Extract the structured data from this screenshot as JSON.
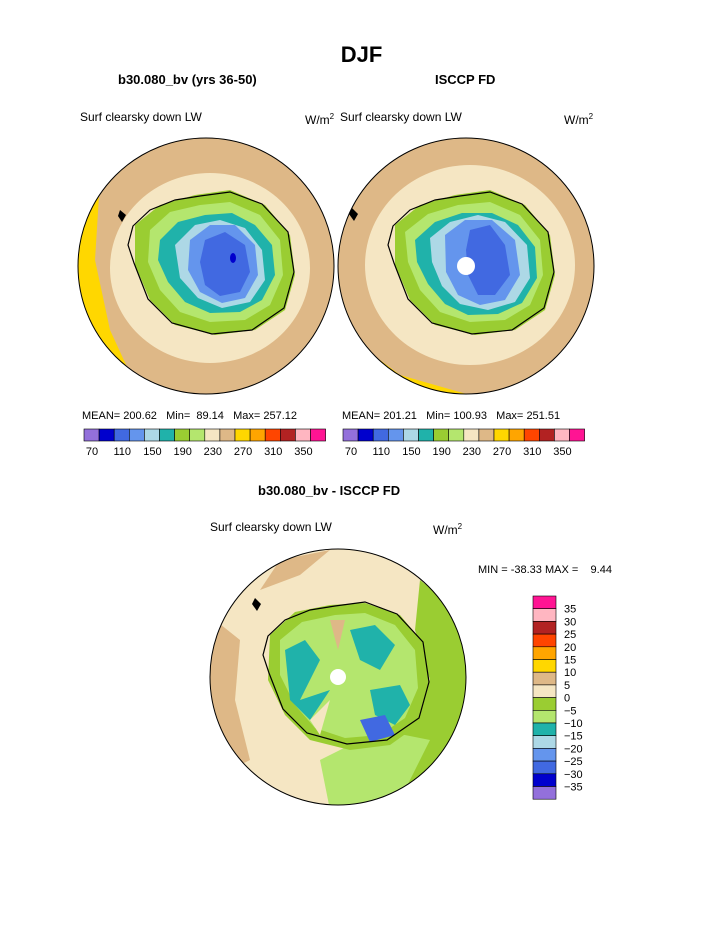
{
  "figure": {
    "title": "DJF"
  },
  "panels": [
    {
      "subtitle": "b30.080_bv (yrs 36-50)",
      "left_label": "Surf clearsky down LW",
      "units_base": "W/m",
      "units_exp": "2",
      "stats": {
        "mean_label": "MEAN=",
        "mean": "200.62",
        "min_label": "Min=",
        "min": "89.14",
        "max_label": "Max=",
        "max": "257.12"
      }
    },
    {
      "subtitle": "ISCCP FD",
      "left_label": "Surf clearsky down LW",
      "units_base": "W/m",
      "units_exp": "2",
      "stats": {
        "mean_label": "MEAN=",
        "mean": "201.21",
        "min_label": "Min=",
        "min": "100.93",
        "max_label": "Max=",
        "max": "251.51"
      }
    }
  ],
  "abs_colorbar": {
    "colors": [
      "#9370db",
      "#0000cd",
      "#4169e1",
      "#6495ed",
      "#add8e6",
      "#20b2aa",
      "#9acd32",
      "#b4e66e",
      "#f5e6c3",
      "#deb887",
      "#ffd700",
      "#ffa500",
      "#ff4500",
      "#b22222",
      "#ffb6c1",
      "#ff1493"
    ],
    "labels": [
      "70",
      "110",
      "150",
      "190",
      "230",
      "270",
      "310",
      "350"
    ]
  },
  "diff_panel": {
    "subtitle": "b30.080_bv - ISCCP FD",
    "left_label": "Surf clearsky down LW",
    "units_base": "W/m",
    "units_exp": "2",
    "stats": {
      "min_label": "MIN =",
      "min": "-38.33",
      "max_label": "MAX =",
      "max": "9.44"
    }
  },
  "diff_colorbar": {
    "colors": [
      "#ff1493",
      "#ffb6c1",
      "#b22222",
      "#ff4500",
      "#ffa500",
      "#ffd700",
      "#deb887",
      "#f5e6c3",
      "#9acd32",
      "#b4e66e",
      "#20b2aa",
      "#add8e6",
      "#6495ed",
      "#4169e1",
      "#0000cd",
      "#9370db"
    ],
    "labels": [
      "35",
      "30",
      "25",
      "20",
      "15",
      "10",
      "5",
      "0",
      "−5",
      "−10",
      "−15",
      "−20",
      "−25",
      "−30",
      "−35"
    ]
  }
}
